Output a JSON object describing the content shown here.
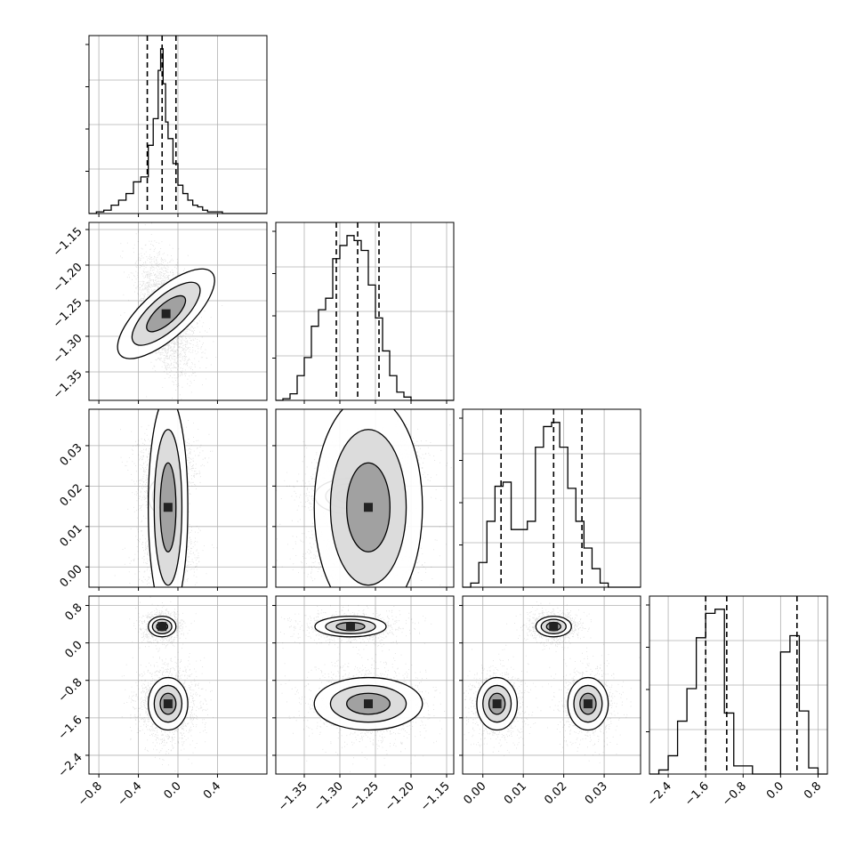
{
  "chart_data": {
    "type": "corner",
    "n_params": 4,
    "params": [
      {
        "range": [
          -0.9,
          0.9
        ],
        "ticks": [
          -0.8,
          -0.4,
          0.0,
          0.4
        ],
        "tick_labels": [
          "−0.8",
          "−0.4",
          "0.0",
          "0.4"
        ],
        "quantiles": [
          -0.31,
          -0.16,
          -0.02
        ],
        "hist_bins": [
          -0.9,
          -0.825,
          -0.75,
          -0.675,
          -0.6,
          -0.525,
          -0.45,
          -0.375,
          -0.3,
          -0.25,
          -0.2,
          -0.175,
          -0.15,
          -0.125,
          -0.1,
          -0.05,
          -0.0,
          0.05,
          0.1,
          0.15,
          0.2,
          0.25,
          0.3,
          0.375,
          0.45,
          0.525,
          0.6,
          0.675,
          0.75,
          0.825,
          0.9
        ],
        "hist_counts": [
          0.0,
          0.01,
          0.02,
          0.05,
          0.08,
          0.12,
          0.19,
          0.22,
          0.41,
          0.57,
          0.86,
          0.99,
          0.78,
          0.55,
          0.45,
          0.3,
          0.17,
          0.12,
          0.08,
          0.05,
          0.04,
          0.02,
          0.01,
          0.01,
          0.0,
          0.0,
          0.0,
          0.0,
          0.0,
          0.0
        ]
      },
      {
        "range": [
          -1.39,
          -1.14
        ],
        "ticks": [
          -1.35,
          -1.3,
          -1.25,
          -1.2,
          -1.15
        ],
        "tick_labels": [
          "−1.35",
          "−1.30",
          "−1.25",
          "−1.20",
          "−1.15"
        ],
        "quantiles": [
          -1.305,
          -1.275,
          -1.245
        ],
        "hist_bins": [
          -1.39,
          -1.38,
          -1.37,
          -1.36,
          -1.35,
          -1.34,
          -1.33,
          -1.32,
          -1.31,
          -1.3,
          -1.29,
          -1.28,
          -1.27,
          -1.26,
          -1.25,
          -1.24,
          -1.23,
          -1.22,
          -1.21,
          -1.2,
          -1.19,
          -1.18,
          -1.17,
          -1.16,
          -1.15,
          -1.14
        ],
        "hist_counts": [
          0.0,
          0.01,
          0.04,
          0.15,
          0.26,
          0.45,
          0.55,
          0.62,
          0.86,
          0.94,
          1.0,
          0.97,
          0.91,
          0.7,
          0.5,
          0.3,
          0.15,
          0.05,
          0.02,
          0.0,
          0.0,
          0.0,
          0.0,
          0.0,
          0.0
        ]
      },
      {
        "range": [
          -0.005,
          0.039
        ],
        "ticks": [
          0.0,
          0.01,
          0.02,
          0.03
        ],
        "tick_labels": [
          "0.00",
          "0.01",
          "0.02",
          "0.03"
        ],
        "quantiles": [
          0.0045,
          0.0175,
          0.0245
        ],
        "hist_bins": [
          -0.005,
          -0.003,
          -0.001,
          0.001,
          0.003,
          0.005,
          0.007,
          0.009,
          0.011,
          0.013,
          0.015,
          0.017,
          0.019,
          0.021,
          0.023,
          0.025,
          0.027,
          0.029,
          0.031,
          0.033,
          0.035,
          0.037,
          0.039
        ],
        "hist_counts": [
          0.0,
          0.02,
          0.12,
          0.32,
          0.49,
          0.51,
          0.28,
          0.28,
          0.32,
          0.68,
          0.78,
          0.8,
          0.68,
          0.48,
          0.32,
          0.19,
          0.09,
          0.02,
          0.0,
          0.0,
          0.0,
          0.0
        ]
      },
      {
        "range": [
          -2.8,
          1.0
        ],
        "ticks": [
          -2.4,
          -1.6,
          -0.8,
          0.0,
          0.8
        ],
        "tick_labels": [
          "−2.4",
          "−1.6",
          "−0.8",
          "0.0",
          "0.8"
        ],
        "quantiles": [
          -1.6,
          -1.15,
          0.35
        ],
        "hist_bins": [
          -2.8,
          -2.6,
          -2.4,
          -2.2,
          -2.0,
          -1.8,
          -1.6,
          -1.4,
          -1.2,
          -1.0,
          -0.8,
          -0.6,
          -0.4,
          -0.2,
          0.0,
          0.2,
          0.4,
          0.6,
          0.8,
          1.0
        ],
        "hist_counts": [
          0.0,
          0.02,
          0.09,
          0.26,
          0.42,
          0.67,
          0.79,
          0.81,
          0.3,
          0.04,
          0.04,
          0.0,
          0.0,
          0.0,
          0.6,
          0.68,
          0.31,
          0.03,
          0.0
        ]
      }
    ],
    "modes": [
      {
        "center": [
          -0.16,
          -1.285,
          0.0175,
          0.35
        ],
        "sd": [
          0.07,
          0.025,
          0.0022,
          0.11
        ],
        "corr01": -0.55
      },
      {
        "center": [
          -0.1,
          -1.27,
          0.0035,
          -1.3
        ],
        "sd": [
          0.1,
          0.028,
          0.0025,
          0.28
        ],
        "corr01": -0.55
      },
      {
        "center": [
          -0.1,
          -1.25,
          0.026,
          -1.3
        ],
        "sd": [
          0.1,
          0.025,
          0.0025,
          0.28
        ],
        "corr01": -0.55
      }
    ],
    "grid": true,
    "hist_style": "step",
    "quantile_style": "dashed",
    "contour_levels": 3
  }
}
